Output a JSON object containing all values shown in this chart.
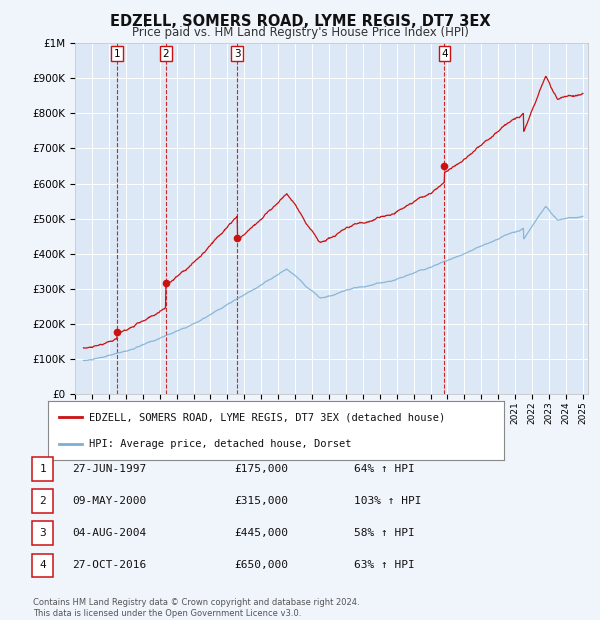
{
  "title": "EDZELL, SOMERS ROAD, LYME REGIS, DT7 3EX",
  "subtitle": "Price paid vs. HM Land Registry's House Price Index (HPI)",
  "title_fontsize": 10.5,
  "subtitle_fontsize": 8.5,
  "background_color": "#f0f4fb",
  "plot_bg_color": "#dce8f5",
  "grid_color": "#ffffff",
  "ylim": [
    0,
    1000000
  ],
  "xlim_start": 1995.3,
  "xlim_end": 2025.3,
  "ytick_labels": [
    "£0",
    "£100K",
    "£200K",
    "£300K",
    "£400K",
    "£500K",
    "£600K",
    "£700K",
    "£800K",
    "£900K",
    "£1M"
  ],
  "ytick_values": [
    0,
    100000,
    200000,
    300000,
    400000,
    500000,
    600000,
    700000,
    800000,
    900000,
    1000000
  ],
  "xtick_years": [
    1995,
    1996,
    1997,
    1998,
    1999,
    2000,
    2001,
    2002,
    2003,
    2004,
    2005,
    2006,
    2007,
    2008,
    2009,
    2010,
    2011,
    2012,
    2013,
    2014,
    2015,
    2016,
    2017,
    2018,
    2019,
    2020,
    2021,
    2022,
    2023,
    2024,
    2025
  ],
  "red_line_color": "#cc1111",
  "blue_line_color": "#7bafd4",
  "sale_points": [
    {
      "num": 1,
      "year": 1997.49,
      "price": 175000,
      "label": "1"
    },
    {
      "num": 2,
      "year": 2000.36,
      "price": 315000,
      "label": "2"
    },
    {
      "num": 3,
      "year": 2004.59,
      "price": 445000,
      "label": "3"
    },
    {
      "num": 4,
      "year": 2016.82,
      "price": 650000,
      "label": "4"
    }
  ],
  "legend_entries": [
    {
      "label": "EDZELL, SOMERS ROAD, LYME REGIS, DT7 3EX (detached house)",
      "color": "#cc1111"
    },
    {
      "label": "HPI: Average price, detached house, Dorset",
      "color": "#7bafd4"
    }
  ],
  "table_rows": [
    {
      "num": "1",
      "date": "27-JUN-1997",
      "price": "£175,000",
      "pct": "64% ↑ HPI"
    },
    {
      "num": "2",
      "date": "09-MAY-2000",
      "price": "£315,000",
      "pct": "103% ↑ HPI"
    },
    {
      "num": "3",
      "date": "04-AUG-2004",
      "price": "£445,000",
      "pct": "58% ↑ HPI"
    },
    {
      "num": "4",
      "date": "27-OCT-2016",
      "price": "£650,000",
      "pct": "63% ↑ HPI"
    }
  ],
  "footer": "Contains HM Land Registry data © Crown copyright and database right 2024.\nThis data is licensed under the Open Government Licence v3.0.",
  "vline_color": "#cc1111",
  "sale_marker_color": "#cc1111",
  "box_edge_color": "#cc1111"
}
